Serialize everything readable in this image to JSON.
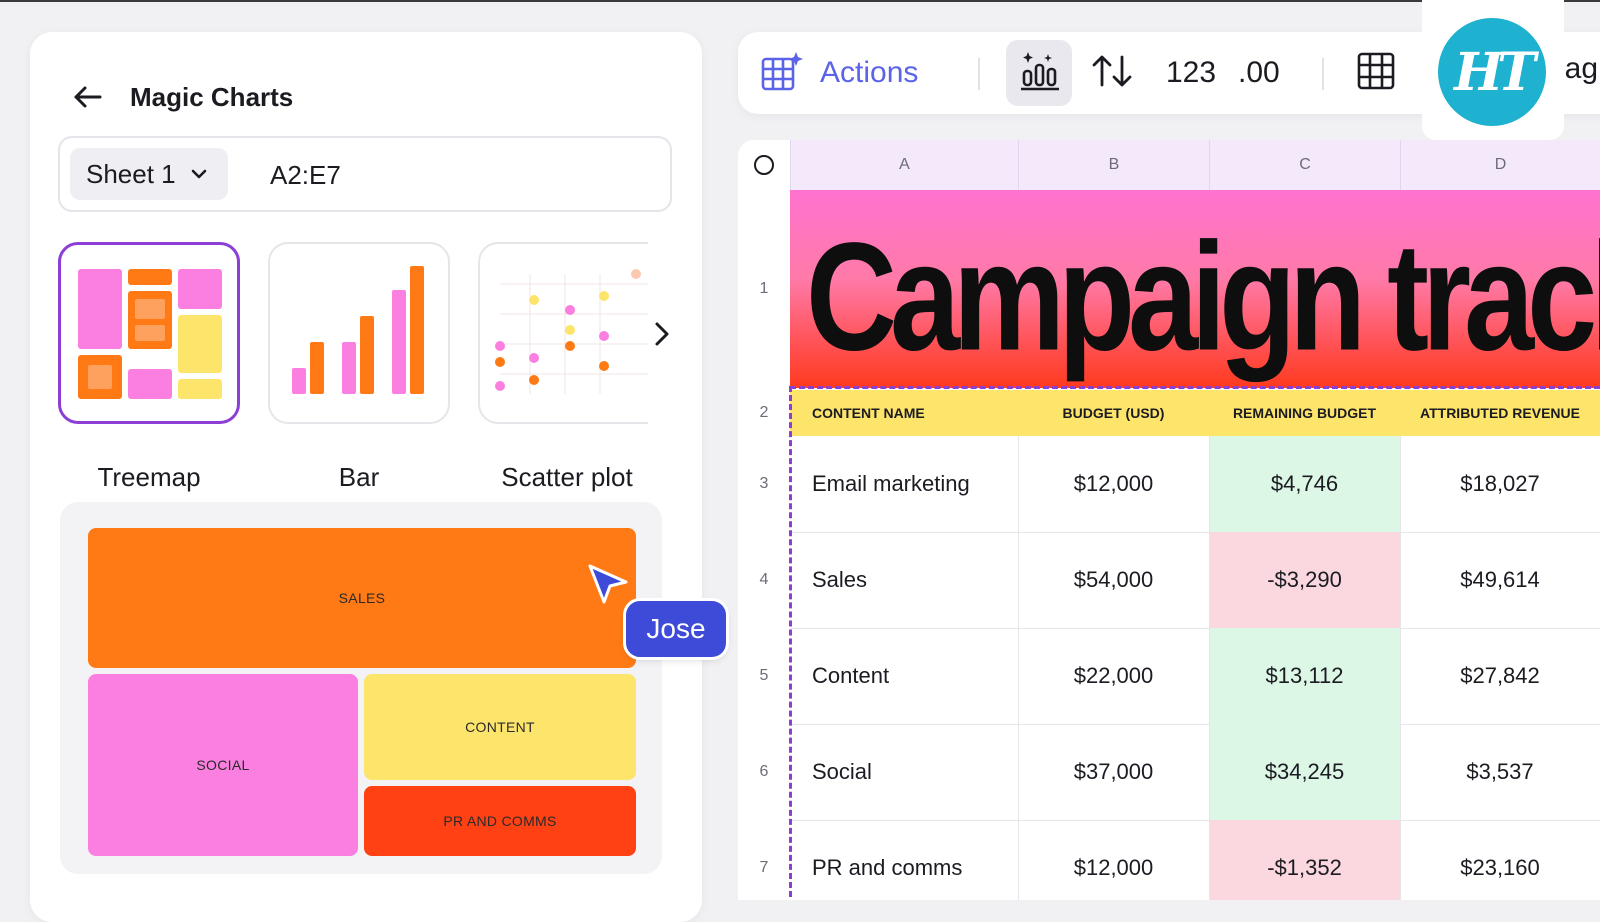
{
  "panel": {
    "title": "Magic Charts",
    "sheet_select": "Sheet 1",
    "range": "A2:E7",
    "chart_types": [
      {
        "label": "Treemap",
        "selected": true
      },
      {
        "label": "Bar",
        "selected": false
      },
      {
        "label": "Scatter plot",
        "selected": false
      }
    ],
    "treemap_preview": {
      "blocks": [
        {
          "label": "SALES",
          "color": "#ff7a14"
        },
        {
          "label": "SOCIAL",
          "color": "#fb7fe0"
        },
        {
          "label": "CONTENT",
          "color": "#fde46a"
        },
        {
          "label": "PR AND COMMS",
          "color": "#ff4114"
        }
      ]
    }
  },
  "collaborator": {
    "name": "Jose",
    "color": "#3d4bd8"
  },
  "toolbar": {
    "actions_label": "Actions",
    "number_format_label": "123",
    "decimal_label": ".00",
    "truncated_label": "lag",
    "accent": "#5b63e8"
  },
  "logo": {
    "text": "HT",
    "color": "#1eb1d0"
  },
  "spreadsheet": {
    "columns": [
      "A",
      "B",
      "C",
      "D"
    ],
    "rows": [
      "1",
      "2",
      "3",
      "4",
      "5",
      "6",
      "7"
    ],
    "title": "Campaign tracker",
    "headers": [
      "CONTENT NAME",
      "BUDGET (USD)",
      "REMAINING BUDGET",
      "ATTRIBUTED REVENUE"
    ],
    "data": [
      {
        "name": "Email marketing",
        "budget": "$12,000",
        "remaining": "$4,746",
        "remaining_status": "positive",
        "revenue": "$18,027"
      },
      {
        "name": "Sales",
        "budget": "$54,000",
        "remaining": "-$3,290",
        "remaining_status": "negative",
        "revenue": "$49,614"
      },
      {
        "name": "Content",
        "budget": "$22,000",
        "remaining": "$13,112",
        "remaining_status": "positive",
        "revenue": "$27,842"
      },
      {
        "name": "Social",
        "budget": "$37,000",
        "remaining": "$34,245",
        "remaining_status": "positive",
        "revenue": "$3,537"
      },
      {
        "name": "PR and comms",
        "budget": "$12,000",
        "remaining": "-$1,352",
        "remaining_status": "negative",
        "revenue": "$23,160"
      }
    ],
    "status_colors": {
      "positive": "#dcf7e6",
      "negative": "#fbd8e0"
    },
    "header_color": "#fde46a"
  }
}
